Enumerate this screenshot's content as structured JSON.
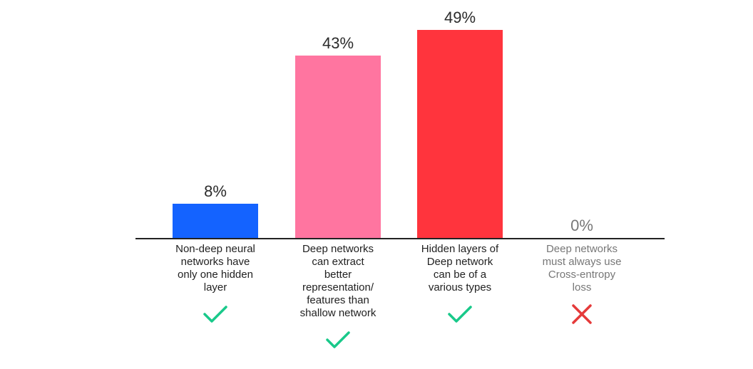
{
  "chart_data": {
    "type": "bar",
    "categories": [
      "Non-deep neural\nnetworks have\nonly one hidden\nlayer",
      "Deep networks\ncan extract\nbetter\nrepresentation/\nfeatures than\nshallow network",
      "Hidden layers of\nDeep network\ncan be of a\nvarious types",
      "Deep networks\nmust always use\nCross-entropy\nloss"
    ],
    "values": [
      8,
      43,
      49,
      0
    ],
    "value_labels": [
      "8%",
      "43%",
      "49%",
      "0%"
    ],
    "correct": [
      true,
      true,
      true,
      false
    ],
    "ylim": [
      0,
      50
    ],
    "colors": [
      "#1463ff",
      "#ff75a0",
      "#ff343d",
      "#cccccc"
    ],
    "grid": false,
    "legend": "none"
  },
  "colors": {
    "check": "#19c98a",
    "cross": "#e53a3a"
  },
  "icons": {
    "correct": "check-icon",
    "incorrect": "cross-icon"
  }
}
